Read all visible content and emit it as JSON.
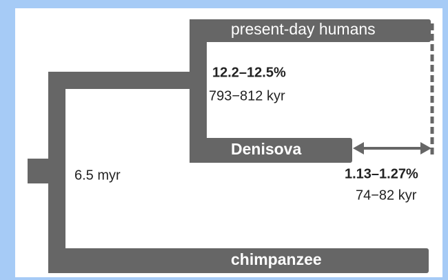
{
  "tree": {
    "leaves": {
      "humans": "present-day humans",
      "denisova": "Denisova",
      "chimp": "chimpanzee"
    },
    "annotations": {
      "human_denisova_pct": "12.2–12.5%",
      "human_denisova_time": "793−812 kyr",
      "root_time": "6.5 myr",
      "denisova_ref_pct": "1.13–1.27%",
      "denisova_ref_time": "74−82 kyr"
    }
  }
}
